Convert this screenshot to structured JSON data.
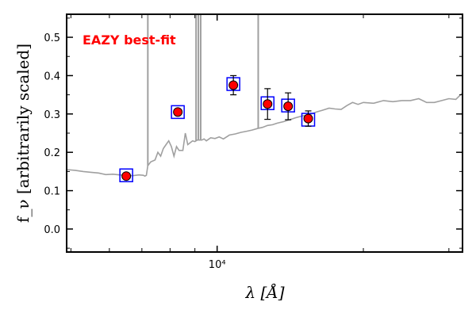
{
  "chart_data": {
    "type": "scatter",
    "x_scale": "log",
    "xlim": [
      4900,
      32000
    ],
    "ylim": [
      -0.06,
      0.56
    ],
    "y_ticks": [
      0.0,
      0.1,
      0.2,
      0.3,
      0.4,
      0.5
    ],
    "y_tick_labels": [
      "0.0",
      "0.1",
      "0.2",
      "0.3",
      "0.4",
      "0.5"
    ],
    "x_ticks": [
      10000
    ],
    "x_tick_labels": [
      "10⁴"
    ],
    "ylabel": "f_ν [arbitrarily scaled]",
    "xlabel": "λ [Å]",
    "annotation": {
      "text": "EAZY best-fit",
      "color": "#ff0000"
    },
    "colors": {
      "template": "#a0a0a0",
      "points": "#ff0000",
      "boxes": "#0000ff",
      "errorbars": "#000000"
    },
    "observed": {
      "x": [
        6500,
        8300,
        10800,
        12700,
        14000,
        15400
      ],
      "y": [
        0.138,
        0.305,
        0.375,
        0.326,
        0.32,
        0.288
      ],
      "yerr": [
        0.004,
        0.007,
        0.025,
        0.04,
        0.035,
        0.02
      ]
    },
    "model_boxes": {
      "x": [
        6500,
        8300,
        10800,
        12700,
        14000,
        15400
      ],
      "y": [
        0.14,
        0.305,
        0.378,
        0.328,
        0.322,
        0.285
      ]
    },
    "template": {
      "x": [
        4900,
        5100,
        5300,
        5500,
        5700,
        5900,
        6100,
        6300,
        6500,
        6700,
        6900,
        7050,
        7100,
        7150,
        7200,
        7300,
        7450,
        7550,
        7650,
        7750,
        7850,
        7950,
        8050,
        8150,
        8250,
        8350,
        8500,
        8600,
        8700,
        8800,
        8900,
        9000,
        9100,
        9250,
        9300,
        9400,
        9500,
        9700,
        9900,
        10100,
        10300,
        10600,
        10900,
        11200,
        11500,
        11800,
        12100,
        12400,
        12700,
        13000,
        13300,
        13700,
        14100,
        14500,
        15000,
        15500,
        16000,
        16500,
        17000,
        17500,
        18000,
        18500,
        19000,
        19500,
        20000,
        21000,
        22000,
        23000,
        24000,
        25000,
        26000,
        27000,
        28000,
        29000,
        30000,
        31000,
        32000
      ],
      "y": [
        0.155,
        0.153,
        0.15,
        0.148,
        0.146,
        0.142,
        0.143,
        0.141,
        0.14,
        0.139,
        0.141,
        0.14,
        0.138,
        0.14,
        0.165,
        0.175,
        0.18,
        0.2,
        0.19,
        0.21,
        0.22,
        0.23,
        0.215,
        0.19,
        0.215,
        0.205,
        0.205,
        0.25,
        0.22,
        0.225,
        0.23,
        0.228,
        0.232,
        0.232,
        0.232,
        0.235,
        0.23,
        0.238,
        0.236,
        0.24,
        0.235,
        0.245,
        0.248,
        0.252,
        0.255,
        0.258,
        0.262,
        0.265,
        0.27,
        0.272,
        0.276,
        0.28,
        0.285,
        0.29,
        0.295,
        0.298,
        0.305,
        0.31,
        0.315,
        0.313,
        0.312,
        0.322,
        0.33,
        0.325,
        0.33,
        0.328,
        0.335,
        0.332,
        0.335,
        0.335,
        0.34,
        0.33,
        0.33,
        0.335,
        0.34,
        0.338,
        0.355
      ]
    },
    "emission_lines": [
      {
        "x": 7200,
        "y": 0.56
      },
      {
        "x": 9050,
        "y": 0.56
      },
      {
        "x": 9150,
        "y": 0.56
      },
      {
        "x": 9250,
        "y": 0.56
      },
      {
        "x": 12150,
        "y": 0.56
      }
    ]
  }
}
